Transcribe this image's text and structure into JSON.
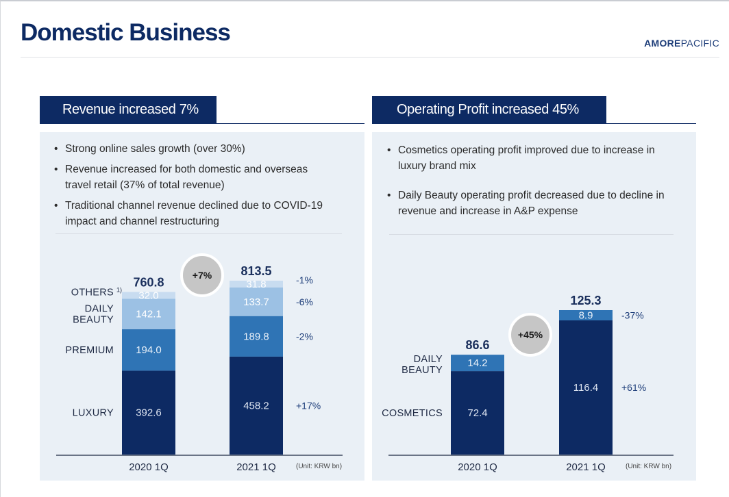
{
  "header": {
    "title": "Domestic Business",
    "brand_a": "AMORE",
    "brand_b": "PACIFIC"
  },
  "revenue_panel": {
    "heading": "Revenue increased 7%",
    "bullets": [
      "Strong online sales growth (over 30%)",
      "Revenue increased for both domestic and overseas travel retail (37% of total revenue)",
      "Traditional channel revenue declined due to COVID-19 impact and channel restructuring"
    ]
  },
  "profit_panel": {
    "heading": "Operating Profit increased 45%",
    "bullets": [
      "Cosmetics operating profit improved due to increase in luxury brand mix",
      "Daily Beauty operating profit decreased due to decline in revenue and increase in A&P expense"
    ]
  },
  "colors": {
    "navy": "#0d2a63",
    "mid_blue": "#2f74b5",
    "light_blue": "#9cc1e4",
    "pale_blue": "#c8dcf0",
    "bubble": "#c8c8c8"
  },
  "chart_data": [
    {
      "type": "bar",
      "stacked": true,
      "title": "Revenue increased 7%",
      "categories": [
        "2020 1Q",
        "2021 1Q"
      ],
      "totals": [
        "760.8",
        "813.5"
      ],
      "series": [
        {
          "name": "LUXURY",
          "values": [
            392.6,
            458.2
          ],
          "labels": [
            "392.6",
            "458.2"
          ],
          "change": "+17%",
          "color": "#0d2a63",
          "text_color": "#dfe6f2"
        },
        {
          "name": "PREMIUM",
          "values": [
            194.0,
            189.8
          ],
          "labels": [
            "194.0",
            "189.8"
          ],
          "change": "-2%",
          "color": "#2f74b5",
          "text_color": "#eaf1f9"
        },
        {
          "name": "DAILY BEAUTY",
          "values": [
            142.1,
            133.7
          ],
          "labels": [
            "142.1",
            "133.7"
          ],
          "change": "-6%",
          "color": "#9cc1e4",
          "text_color": "#ffffff"
        },
        {
          "name": "OTHERS",
          "values": [
            32.0,
            31.8
          ],
          "labels": [
            "32.0",
            "31.8"
          ],
          "change": "-1%",
          "color": "#c8dcf0",
          "text_color": "#ffffff"
        }
      ],
      "legend_labels": [
        "LUXURY",
        "PREMIUM",
        "DAILY|BEAUTY",
        "OTHERS"
      ],
      "footnote_mark": "1)",
      "growth": "+7%",
      "unit": "(Unit: KRW bn)",
      "ylim": [
        0,
        813.5
      ]
    },
    {
      "type": "bar",
      "stacked": true,
      "title": "Operating Profit increased 45%",
      "categories": [
        "2020 1Q",
        "2021 1Q"
      ],
      "totals": [
        "86.6",
        "125.3"
      ],
      "series": [
        {
          "name": "COSMETICS",
          "values": [
            72.4,
            116.4
          ],
          "labels": [
            "72.4",
            "116.4"
          ],
          "change": "+61%",
          "color": "#0d2a63",
          "text_color": "#dfe6f2"
        },
        {
          "name": "DAILY BEAUTY",
          "values": [
            14.2,
            8.9
          ],
          "labels": [
            "14.2",
            "8.9"
          ],
          "change": "-37%",
          "color": "#2f74b5",
          "text_color": "#eaf1f9"
        }
      ],
      "legend_labels": [
        "COSMETICS",
        "DAILY|BEAUTY"
      ],
      "growth": "+45%",
      "unit": "(Unit: KRW bn)",
      "ylim": [
        0,
        125.3
      ]
    }
  ]
}
